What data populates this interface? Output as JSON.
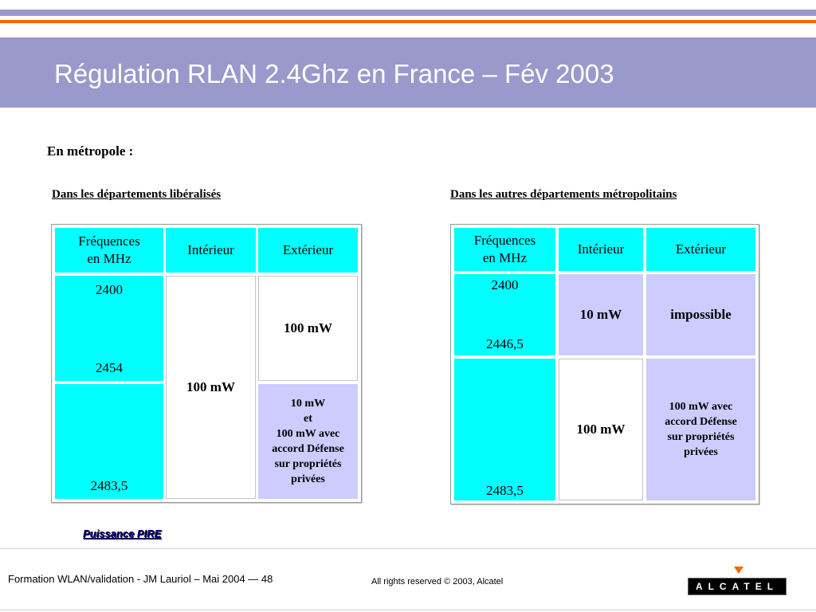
{
  "slide": {
    "title": "Régulation RLAN 2.4Ghz en France – Fév 2003",
    "section": "En métropole :",
    "pire_note": "Puissance PIRE"
  },
  "left_table": {
    "heading": "Dans les départements libéralisés",
    "headers": {
      "freq": "Fréquences\nen MHz",
      "interior": "Intérieur",
      "exterior": "Extérieur"
    },
    "freq_values": [
      "2400",
      "2454",
      "2483,5"
    ],
    "interior_value": "100 mW",
    "exterior_upper": "100 mW",
    "exterior_lower": "10 mW\net\n100 mW avec\naccord Défense\nsur propriétés\nprivées"
  },
  "right_table": {
    "heading": "Dans les autres départements métropolitains",
    "headers": {
      "freq": "Fréquences\nen MHz",
      "interior": "Intérieur",
      "exterior": "Extérieur"
    },
    "freq_values": [
      "2400",
      "2446,5",
      "2483,5"
    ],
    "interior_upper": "10 mW",
    "exterior_upper": "impossible",
    "interior_lower": "100 mW",
    "exterior_lower": "100 mW avec\naccord Défense\nsur propriétés\nprivées"
  },
  "footer": {
    "left": "Formation WLAN/validation - JM Lauriol  – Mai 2004 — 48",
    "right": "All rights reserved © 2003, Alcatel",
    "logo_text": "ALCATEL"
  },
  "colors": {
    "accent_band": "#9999cc",
    "orange_line": "#ff6600",
    "cyan_cell": "#00ffff",
    "lavender_cell": "#ccccff"
  }
}
